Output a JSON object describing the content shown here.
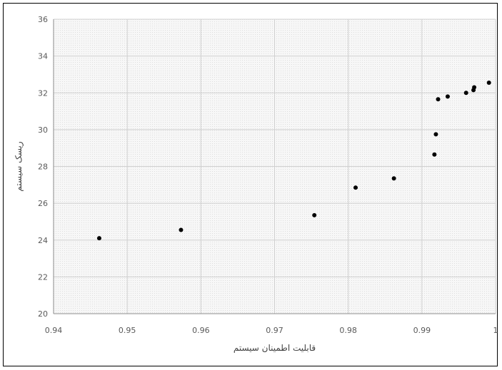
{
  "chart_data": {
    "type": "scatter",
    "title": "",
    "xlabel": "قابلیت اطمینان سیستم",
    "ylabel": "ریسک سیستم",
    "xlim": [
      0.94,
      1.0
    ],
    "ylim": [
      20,
      36
    ],
    "x_ticks": [
      "0.94",
      "0.95",
      "0.96",
      "0.97",
      "0.98",
      "0.99",
      "1"
    ],
    "y_ticks": [
      "20",
      "22",
      "24",
      "26",
      "28",
      "30",
      "32",
      "34",
      "36"
    ],
    "grid": true,
    "legend": "none",
    "marker_color": "#000000",
    "series": [
      {
        "points": [
          {
            "x": 0.9462,
            "y": 24.1
          },
          {
            "x": 0.9573,
            "y": 24.55
          },
          {
            "x": 0.9754,
            "y": 25.35
          },
          {
            "x": 0.981,
            "y": 26.85
          },
          {
            "x": 0.9862,
            "y": 27.35
          },
          {
            "x": 0.9917,
            "y": 28.65
          },
          {
            "x": 0.9919,
            "y": 29.75
          },
          {
            "x": 0.9922,
            "y": 31.65
          },
          {
            "x": 0.9935,
            "y": 31.8
          },
          {
            "x": 0.996,
            "y": 32.0
          },
          {
            "x": 0.997,
            "y": 32.15
          },
          {
            "x": 0.9971,
            "y": 32.3
          },
          {
            "x": 0.9991,
            "y": 32.55
          }
        ]
      }
    ]
  }
}
